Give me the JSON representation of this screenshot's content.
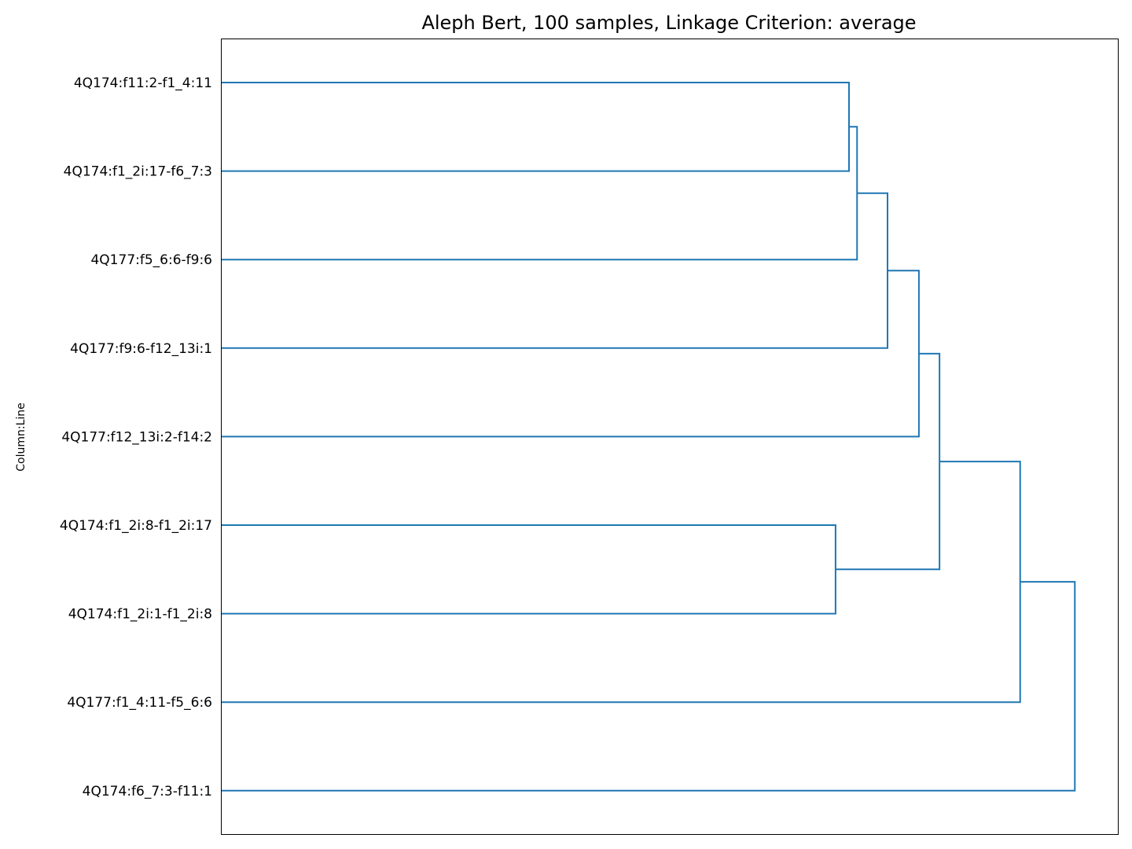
{
  "chart_data": {
    "type": "dendrogram",
    "title": "Aleph Bert, 100 samples, Linkage Criterion: average",
    "ylabel": "Column:Line",
    "xlabel": "",
    "orientation": "left",
    "link_color": "#1f77b4",
    "grid": false,
    "leaves": [
      "4Q174:f11:2-f1_4:11",
      "4Q174:f1_2i:17-f6_7:3",
      "4Q177:f5_6:6-f9:6",
      "4Q177:f9:6-f12_13i:1",
      "4Q177:f12_13i:2-f14:2",
      "4Q174:f1_2i:8-f1_2i:17",
      "4Q174:f1_2i:1-f1_2i:8",
      "4Q177:f1_4:11-f5_6:6",
      "4Q174:f6_7:3-f11:1"
    ],
    "merges": [
      {
        "a": "L0",
        "b": "L1",
        "height": 0.7
      },
      {
        "a": "M0",
        "b": "L2",
        "height": 0.709
      },
      {
        "a": "L5",
        "b": "L6",
        "height": 0.685
      },
      {
        "a": "M1",
        "b": "L3",
        "height": 0.743
      },
      {
        "a": "M3",
        "b": "L4",
        "height": 0.778
      },
      {
        "a": "M4",
        "b": "M2",
        "height": 0.801
      },
      {
        "a": "M5",
        "b": "L7",
        "height": 0.891
      },
      {
        "a": "M6",
        "b": "L8",
        "height": 0.952
      }
    ],
    "xlim": [
      0,
      1.0
    ]
  }
}
